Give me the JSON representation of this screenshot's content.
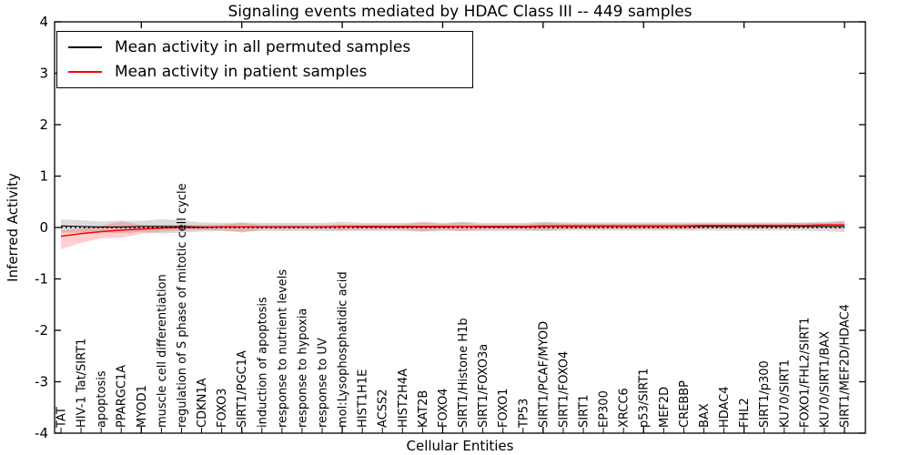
{
  "chart_data": {
    "type": "line",
    "title": "Signaling events mediated by HDAC Class III -- 449 samples",
    "xlabel": "Cellular Entities",
    "ylabel": "Inferred Activity",
    "ylim": [
      -4,
      4
    ],
    "yticks": [
      -4,
      -3,
      -2,
      -1,
      0,
      1,
      2,
      3,
      4
    ],
    "grid": false,
    "zero_reference_line": true,
    "legend_position": "upper left",
    "categories": [
      "TAT",
      "HIV-1 Tat/SIRT1",
      "apoptosis",
      "PPARGC1A",
      "MYOD1",
      "muscle cell differentiation",
      "regulation of S phase of mitotic cell cycle",
      "CDKN1A",
      "FOXO3",
      "SIRT1/PGC1A",
      "induction of apoptosis",
      "response to nutrient levels",
      "response to hypoxia",
      "response to UV",
      "mol:Lysophosphatidic acid",
      "HIST1H1E",
      "ACSS2",
      "HIST2H4A",
      "KAT2B",
      "FOXO4",
      "SIRT1/Histone H1b",
      "SIRT1/FOXO3a",
      "FOXO1",
      "TP53",
      "SIRT1/PCAF/MYOD",
      "SIRT1/FOXO4",
      "SIRT1",
      "EP300",
      "XRCC6",
      "p53/SIRT1",
      "MEF2D",
      "CREBBP",
      "BAX",
      "HDAC4",
      "FHL2",
      "SIRT1/p300",
      "KU70/SIRT1",
      "FOXO1/FHL2/SIRT1",
      "KU70/SIRT1/BAX",
      "SIRT1/MEF2D/HDAC4"
    ],
    "series": [
      {
        "name": "Mean activity in all permuted samples",
        "color": "#000000",
        "band_color": "#999999",
        "band_opacity": 0.35,
        "values": [
          0.03,
          0.02,
          0.01,
          0.01,
          0.02,
          0.02,
          0.02,
          0.01,
          0.01,
          0.01,
          0.01,
          0.01,
          0.01,
          0.01,
          0.02,
          0.01,
          0.01,
          0.01,
          0.01,
          0.01,
          0.02,
          0.01,
          0.01,
          0.01,
          0.02,
          0.02,
          0.02,
          0.02,
          0.02,
          0.02,
          0.02,
          0.02,
          0.02,
          0.02,
          0.02,
          0.02,
          0.02,
          0.02,
          0.02,
          0.02
        ],
        "band_upper": [
          0.16,
          0.14,
          0.12,
          0.13,
          0.13,
          0.16,
          0.14,
          0.1,
          0.09,
          0.1,
          0.09,
          0.09,
          0.09,
          0.09,
          0.11,
          0.09,
          0.09,
          0.09,
          0.1,
          0.09,
          0.11,
          0.09,
          0.09,
          0.09,
          0.11,
          0.1,
          0.1,
          0.1,
          0.1,
          0.1,
          0.1,
          0.1,
          0.1,
          0.1,
          0.1,
          0.1,
          0.1,
          0.1,
          0.11,
          0.13
        ],
        "band_lower": [
          -0.1,
          -0.1,
          -0.1,
          -0.11,
          -0.09,
          -0.12,
          -0.1,
          -0.08,
          -0.07,
          -0.08,
          -0.07,
          -0.07,
          -0.07,
          -0.07,
          -0.07,
          -0.07,
          -0.07,
          -0.07,
          -0.08,
          -0.07,
          -0.07,
          -0.07,
          -0.07,
          -0.07,
          -0.07,
          -0.06,
          -0.06,
          -0.06,
          -0.06,
          -0.06,
          -0.06,
          -0.06,
          -0.06,
          -0.06,
          -0.06,
          -0.06,
          -0.06,
          -0.06,
          -0.07,
          -0.09
        ]
      },
      {
        "name": "Mean activity in patient samples",
        "color": "#ff0000",
        "band_color": "#ff2222",
        "band_opacity": 0.22,
        "values": [
          -0.17,
          -0.12,
          -0.08,
          -0.05,
          -0.03,
          -0.01,
          0.0,
          0.0,
          0.01,
          0.01,
          0.01,
          0.01,
          0.01,
          0.01,
          0.02,
          0.02,
          0.02,
          0.02,
          0.02,
          0.02,
          0.02,
          0.02,
          0.02,
          0.02,
          0.03,
          0.03,
          0.03,
          0.03,
          0.03,
          0.03,
          0.03,
          0.03,
          0.04,
          0.04,
          0.04,
          0.04,
          0.04,
          0.04,
          0.05,
          0.05
        ],
        "band_upper": [
          -0.05,
          -0.02,
          0.03,
          0.12,
          0.05,
          0.05,
          0.05,
          0.05,
          0.05,
          0.09,
          0.05,
          0.05,
          0.05,
          0.05,
          0.06,
          0.06,
          0.06,
          0.06,
          0.11,
          0.07,
          0.1,
          0.06,
          0.06,
          0.06,
          0.1,
          0.08,
          0.07,
          0.07,
          0.07,
          0.07,
          0.07,
          0.07,
          0.08,
          0.08,
          0.08,
          0.08,
          0.08,
          0.09,
          0.09,
          0.12
        ],
        "band_lower": [
          -0.42,
          -0.3,
          -0.21,
          -0.2,
          -0.12,
          -0.08,
          -0.06,
          -0.05,
          -0.05,
          -0.1,
          -0.04,
          -0.04,
          -0.04,
          -0.04,
          -0.05,
          -0.04,
          -0.04,
          -0.04,
          -0.08,
          -0.04,
          -0.07,
          -0.04,
          -0.04,
          -0.04,
          -0.06,
          -0.04,
          -0.03,
          -0.03,
          -0.03,
          -0.03,
          -0.03,
          -0.03,
          -0.02,
          -0.02,
          -0.02,
          -0.02,
          -0.02,
          -0.01,
          -0.01,
          -0.03
        ]
      }
    ]
  }
}
